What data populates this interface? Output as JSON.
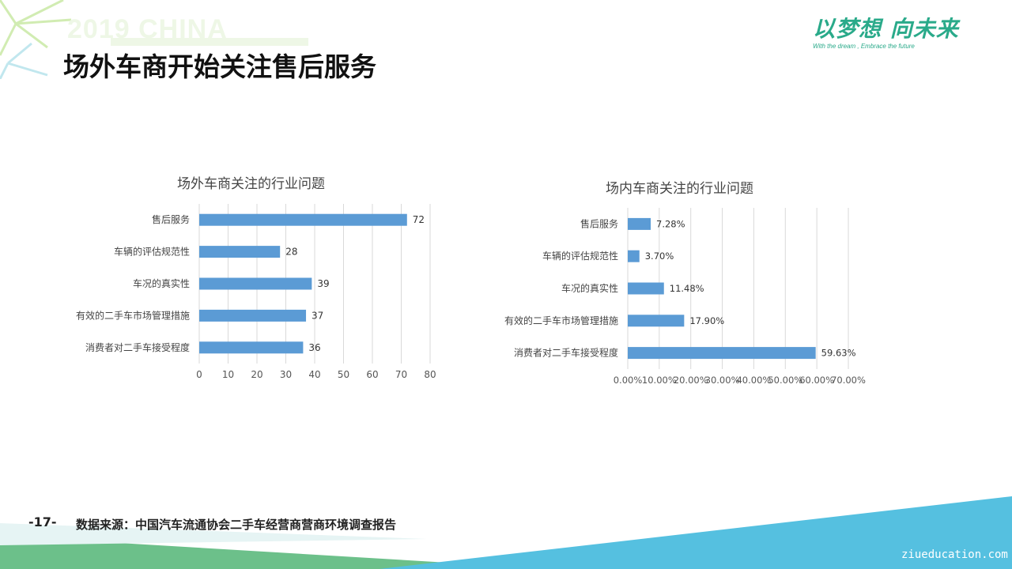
{
  "slide": {
    "watermark": "2019 CHINA",
    "title": "场外车商开始关注售后服务",
    "page_number": "-17-",
    "source": "数据来源：中国汽车流通协会二手车经营商营商环境调查报告",
    "site_url": "ziueducation.com"
  },
  "logo": {
    "main": "以梦想 向未来",
    "sub": "With the dream , Embrace the future"
  },
  "colors": {
    "bar": "#5b9bd5",
    "grid": "#d9d9d9",
    "accent": "#2aaa8a",
    "bottom_band": "#55c0e0"
  },
  "chart_data": [
    {
      "type": "bar",
      "orientation": "horizontal",
      "title": "场外车商关注的行业问题",
      "categories": [
        "售后服务",
        "车辆的评估规范性",
        "车况的真实性",
        "有效的二手车市场管理措施",
        "消费者对二手车接受程度"
      ],
      "values": [
        72,
        28,
        39,
        37,
        36
      ],
      "data_labels": [
        "72",
        "28",
        "39",
        "37",
        "36"
      ],
      "xlim": [
        0,
        80
      ],
      "xticks": [
        "0",
        "10",
        "20",
        "30",
        "40",
        "50",
        "60",
        "70",
        "80"
      ],
      "grid": true
    },
    {
      "type": "bar",
      "orientation": "horizontal",
      "title": "场内车商关注的行业问题",
      "categories": [
        "售后服务",
        "车辆的评估规范性",
        "车况的真实性",
        "有效的二手车市场管理措施",
        "消费者对二手车接受程度"
      ],
      "values": [
        7.28,
        3.7,
        11.48,
        17.9,
        59.63
      ],
      "data_labels": [
        "7.28%",
        "3.70%",
        "11.48%",
        "17.90%",
        "59.63%"
      ],
      "xlim": [
        0,
        70
      ],
      "xticks": [
        "0.00%",
        "10.00%",
        "20.00%",
        "30.00%",
        "40.00%",
        "50.00%",
        "60.00%",
        "70.00%"
      ],
      "grid": true
    }
  ]
}
